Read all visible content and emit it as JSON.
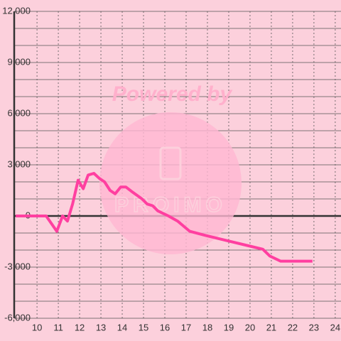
{
  "chart_data": {
    "type": "line",
    "watermark": {
      "top": "Powered by",
      "bottom": "PROIMO"
    },
    "x": [
      9.0,
      10.43,
      10.93,
      11.2,
      11.43,
      11.67,
      11.93,
      12.17,
      12.4,
      12.67,
      12.93,
      13.17,
      13.43,
      13.67,
      13.93,
      14.17,
      14.43,
      14.93,
      15.17,
      15.43,
      15.67,
      16.17,
      16.6,
      17.17,
      17.93,
      18.93,
      19.93,
      20.6,
      20.93,
      21.43,
      22.93
    ],
    "series": [
      {
        "color": "#ff3fa0",
        "values": [
          0,
          0,
          -900,
          0,
          -300,
          700,
          2100,
          1600,
          2400,
          2500,
          2200,
          2000,
          1500,
          1300,
          1700,
          1700,
          1450,
          1000,
          700,
          600,
          300,
          0,
          -300,
          -900,
          -1150,
          -1450,
          -1750,
          -1950,
          -2350,
          -2650,
          -2650
        ]
      }
    ],
    "xlim": [
      8.93,
      24.27
    ],
    "xticks": [
      10,
      11,
      12,
      13,
      14,
      15,
      16,
      17,
      18,
      19,
      20,
      21,
      22,
      23,
      24
    ],
    "ylim": [
      -6000,
      12000
    ],
    "yticks": [
      {
        "value": -6000,
        "label": "-6,000"
      },
      {
        "value": -3000,
        "label": "-3,000"
      },
      0,
      {
        "value": 3000,
        "label": "3,000"
      },
      {
        "value": 6000,
        "label": "6,000"
      },
      {
        "value": 9000,
        "label": "9,000"
      },
      {
        "value": 12000,
        "label": "12,000"
      }
    ],
    "grid": true
  }
}
